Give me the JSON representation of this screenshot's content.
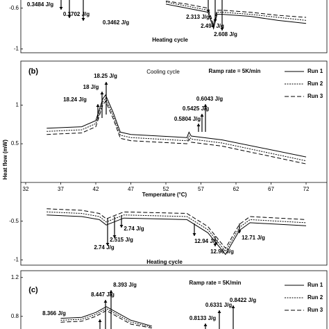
{
  "chart_data": [
    {
      "type": "line",
      "ylim": [
        -1.03,
        -0.52
      ],
      "xlim": [
        32,
        72
      ],
      "yticks": [
        -0.6,
        -1
      ],
      "subtitle": "Heating cycle",
      "annotations": [
        "0.3484 J/g",
        "0.3702 J/g",
        "0.3462 J/g",
        "2.313 J/g",
        "2.494 J/g",
        "2.608 J/g"
      ],
      "series": [
        {
          "dash": "solid",
          "color": "#000000",
          "x": [
            52,
            55,
            58,
            58.8,
            59.3,
            60,
            64,
            68,
            72
          ],
          "values": [
            -0.56,
            -0.6,
            -0.64,
            -0.8,
            -0.66,
            -0.66,
            -0.68,
            -0.72,
            -0.75
          ]
        },
        {
          "dash": "dotted",
          "color": "#000000",
          "x": [
            52,
            55,
            58,
            58.8,
            59.3,
            60,
            64,
            68,
            72
          ],
          "values": [
            -0.54,
            -0.58,
            -0.62,
            -0.78,
            -0.64,
            -0.64,
            -0.66,
            -0.69,
            -0.72
          ]
        },
        {
          "dash": "dashed",
          "color": "#000000",
          "x": [
            52,
            55,
            58,
            58.8,
            59.3,
            60,
            64,
            68,
            72
          ],
          "values": [
            -0.53,
            -0.56,
            -0.6,
            -0.76,
            -0.62,
            -0.62,
            -0.64,
            -0.67,
            -0.69
          ]
        }
      ]
    },
    {
      "type": "line",
      "label": "(b)",
      "title": "Cooling cycle",
      "subtitle": "Heating cycle",
      "note": "Ramp rate = 5K/min",
      "xlabel": "Temperature (°C)",
      "ylabel": "Heat flow (mW)",
      "ylim": [
        -1.05,
        1.55
      ],
      "xlim": [
        32,
        72
      ],
      "yticks": [
        1,
        0.5,
        -0.5,
        -1
      ],
      "xticks": [
        32,
        37,
        42,
        47,
        52,
        57,
        62,
        67,
        72
      ],
      "annotations": [
        "18.25 J/g",
        "18 J/g",
        "18.24 J/g",
        "0.6043 J/g",
        "0.5425 J/g",
        "0.5804 J/g",
        "2.74 J/g",
        "2.515 J/g",
        "2.74 J/g",
        "12.94 J/g",
        "12.96 J/g",
        "12.71 J/g"
      ],
      "series": [
        {
          "name": "Run 1",
          "dash": "solid",
          "color": "#000000",
          "x": [
            35,
            40,
            42,
            43,
            43.4,
            44.5,
            45.5,
            47,
            55,
            55.3,
            55.6,
            60,
            72
          ],
          "values": [
            0.7,
            0.72,
            0.8,
            1.08,
            1.13,
            0.9,
            0.65,
            0.62,
            0.58,
            0.65,
            0.6,
            0.55,
            0.33
          ]
        },
        {
          "name": "Run 2",
          "dash": "dotted",
          "color": "#000000",
          "x": [
            35,
            40,
            42,
            43,
            43.4,
            44.5,
            45.5,
            47,
            55,
            55.3,
            55.6,
            60,
            72
          ],
          "values": [
            0.66,
            0.68,
            0.76,
            1.04,
            1.09,
            0.86,
            0.61,
            0.58,
            0.54,
            0.6,
            0.56,
            0.51,
            0.28
          ]
        },
        {
          "name": "Run 3",
          "dash": "dashed",
          "color": "#000000",
          "x": [
            35,
            40,
            42,
            43,
            43.4,
            44.5,
            45.5,
            47,
            55,
            55.3,
            55.6,
            60,
            72
          ],
          "values": [
            0.62,
            0.64,
            0.72,
            1.0,
            1.05,
            0.82,
            0.57,
            0.54,
            0.5,
            0.56,
            0.52,
            0.47,
            0.24
          ]
        },
        {
          "dash": "solid",
          "color": "#000000",
          "x": [
            35,
            40,
            42.5,
            43.5,
            46,
            55,
            58,
            60.5,
            62.5,
            64,
            72
          ],
          "values": [
            -0.42,
            -0.44,
            -0.48,
            -0.55,
            -0.46,
            -0.48,
            -0.65,
            -0.93,
            -0.62,
            -0.52,
            -0.56
          ]
        },
        {
          "dash": "dotted",
          "color": "#000000",
          "x": [
            35,
            40,
            42.5,
            43.5,
            46,
            55,
            58,
            60.5,
            62.5,
            64,
            72
          ],
          "values": [
            -0.38,
            -0.4,
            -0.44,
            -0.51,
            -0.42,
            -0.44,
            -0.61,
            -0.89,
            -0.58,
            -0.48,
            -0.52
          ]
        },
        {
          "dash": "dashed",
          "color": "#000000",
          "x": [
            35,
            40,
            42.5,
            43.5,
            46,
            55,
            58,
            60.5,
            62.5,
            64,
            72
          ],
          "values": [
            -0.34,
            -0.36,
            -0.4,
            -0.47,
            -0.38,
            -0.4,
            -0.57,
            -0.85,
            -0.54,
            -0.44,
            -0.48
          ]
        }
      ]
    },
    {
      "type": "line",
      "label": "(c)",
      "note": "Ramp rate = 5K/min",
      "ylim": [
        0.67,
        1.32
      ],
      "xlim": [
        32,
        72
      ],
      "yticks": [
        1.2,
        0.8
      ],
      "annotations": [
        "8.393 J/g",
        "8.447 J/g",
        "8.366 J/g",
        "0.6331 J/g",
        "0.8133 J/g",
        "0.8422 J/g"
      ],
      "series": [
        {
          "name": "Run 1",
          "dash": "solid",
          "color": "#000000",
          "x": [
            37,
            40,
            42,
            43.5,
            45,
            47,
            50
          ],
          "values": [
            0.78,
            0.79,
            0.84,
            0.9,
            0.84,
            0.76,
            0.7
          ]
        },
        {
          "name": "Run 2",
          "dash": "dotted",
          "color": "#000000",
          "x": [
            37,
            40,
            42,
            43.5,
            45,
            47,
            50
          ],
          "values": [
            0.76,
            0.77,
            0.82,
            0.88,
            0.82,
            0.74,
            0.69
          ]
        },
        {
          "name": "Run 3",
          "dash": "dashed",
          "color": "#000000",
          "x": [
            37,
            40,
            42,
            43.5,
            45,
            47,
            50
          ],
          "values": [
            0.74,
            0.75,
            0.8,
            0.86,
            0.8,
            0.72,
            0.68
          ]
        }
      ]
    }
  ]
}
